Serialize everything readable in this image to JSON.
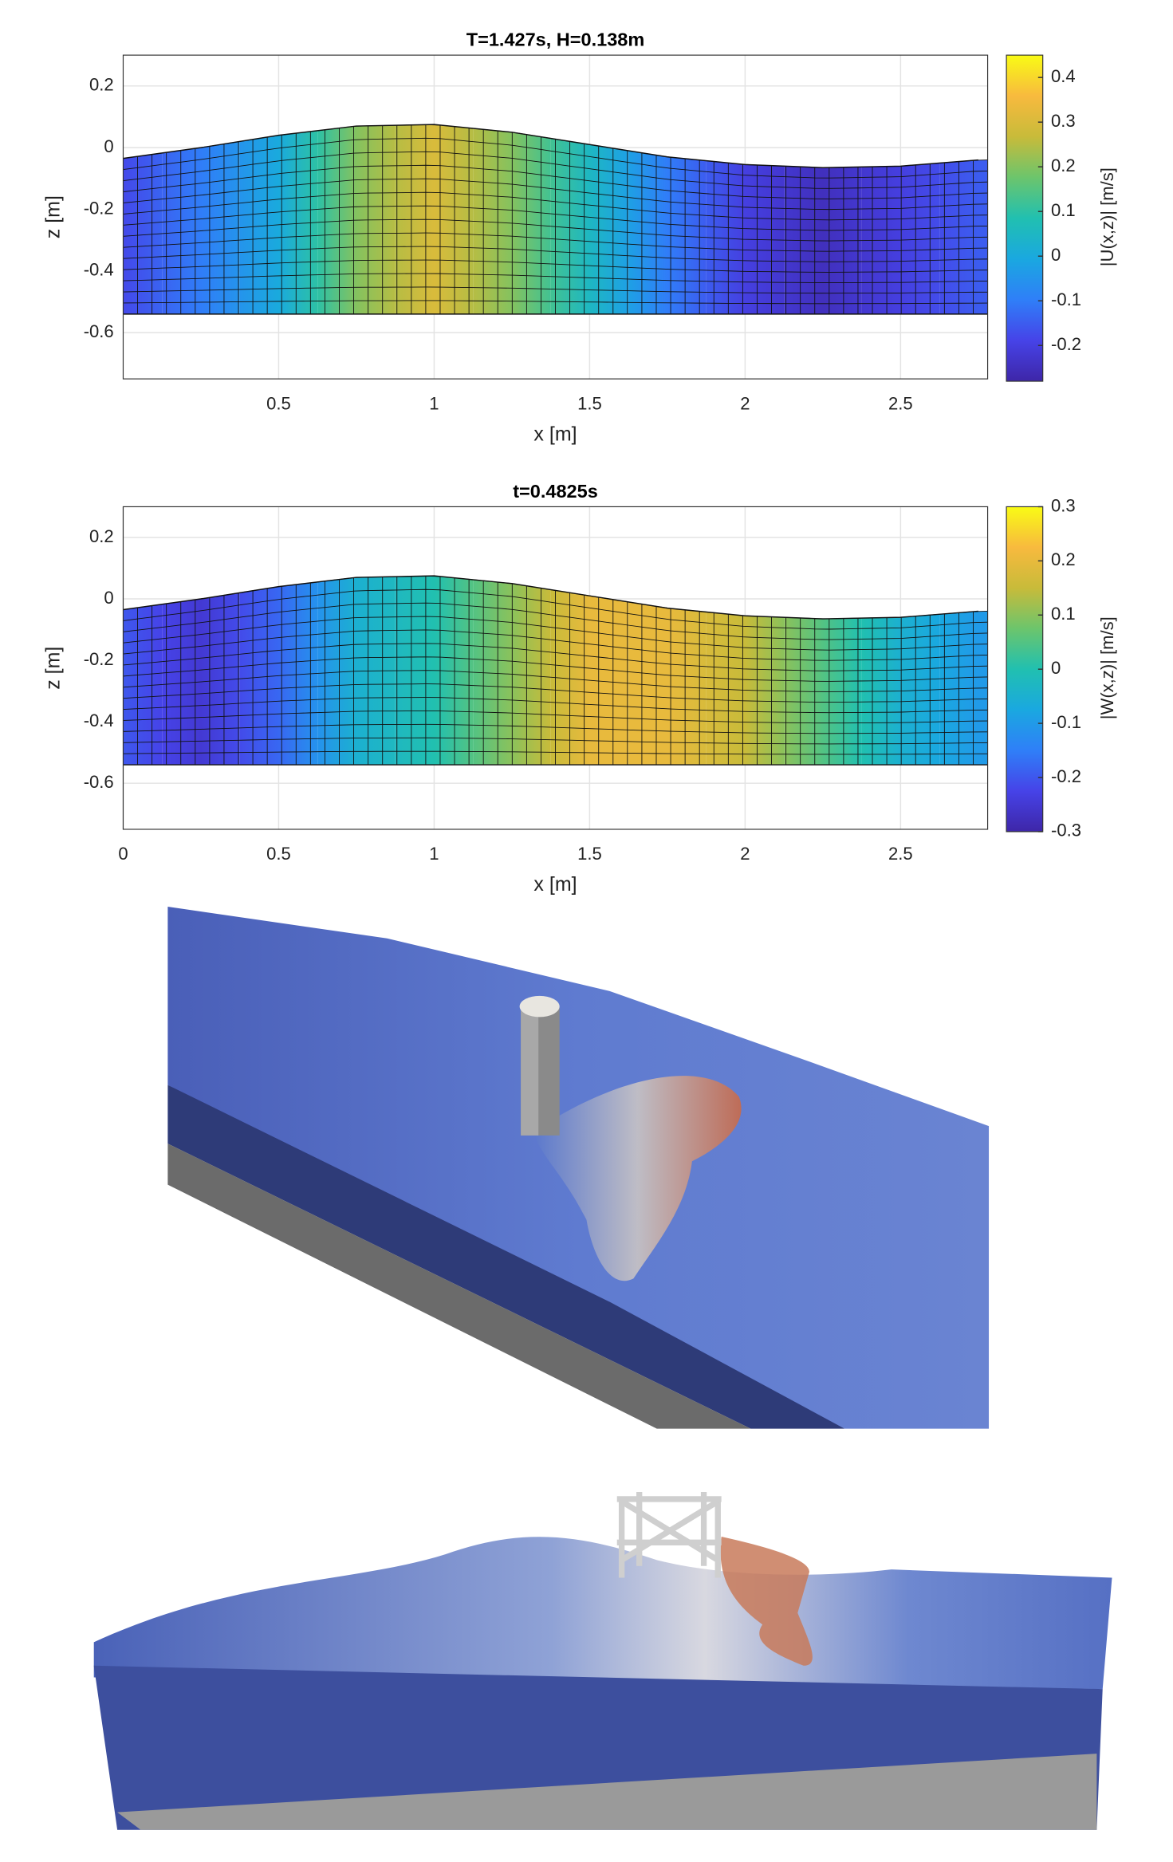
{
  "chart_data": [
    {
      "type": "mesh",
      "title": "T=1.427s, H=0.138m",
      "x_label": "x [m]",
      "y_label": "z [m]",
      "colorbar_label": "|U(x,z)| [m/s]",
      "colormap": "parula",
      "x": [
        0,
        0.25,
        0.5,
        0.75,
        1.0,
        1.25,
        1.5,
        1.75,
        2.0,
        2.25,
        2.5,
        2.75
      ],
      "surface": [
        -0.035,
        0.0,
        0.04,
        0.07,
        0.075,
        0.05,
        0.01,
        -0.03,
        -0.055,
        -0.065,
        -0.06,
        -0.04
      ],
      "bottom": -0.54,
      "values": [
        -0.18,
        -0.1,
        0.0,
        0.2,
        0.3,
        0.2,
        0.05,
        -0.1,
        -0.2,
        -0.25,
        -0.2,
        -0.15
      ],
      "xlim": [
        0,
        2.78
      ],
      "xticks": [
        0.5,
        1,
        1.5,
        2,
        2.5
      ],
      "ylim": [
        -0.75,
        0.3
      ],
      "yticks": [
        0.2,
        0,
        -0.2,
        -0.4,
        -0.6
      ],
      "clim": [
        -0.28,
        0.45
      ],
      "cticks": [
        0.4,
        0.3,
        0.2,
        0.1,
        0,
        -0.1,
        -0.2
      ],
      "grid": true
    },
    {
      "type": "mesh",
      "title": "t=0.4825s",
      "x_label": "x [m]",
      "y_label": "z [m]",
      "colorbar_label": "|W(x,z)| [m/s]",
      "colormap": "parula",
      "x": [
        0,
        0.25,
        0.5,
        0.75,
        1.0,
        1.25,
        1.5,
        1.75,
        2.0,
        2.25,
        2.5,
        2.75
      ],
      "surface": [
        -0.035,
        0.0,
        0.04,
        0.07,
        0.075,
        0.05,
        0.01,
        -0.03,
        -0.055,
        -0.065,
        -0.06,
        -0.04
      ],
      "bottom": -0.54,
      "values": [
        -0.2,
        -0.25,
        -0.18,
        -0.05,
        0.0,
        0.1,
        0.2,
        0.2,
        0.15,
        0.05,
        -0.05,
        -0.1
      ],
      "xlim": [
        0,
        2.78
      ],
      "xticks": [
        0,
        0.5,
        1,
        1.5,
        2,
        2.5
      ],
      "ylim": [
        -0.75,
        0.3
      ],
      "yticks": [
        0.2,
        0,
        -0.2,
        -0.4,
        -0.6
      ],
      "clim": [
        -0.3,
        0.3
      ],
      "cticks": [
        0.3,
        0.2,
        0.1,
        0,
        -0.1,
        -0.2,
        -0.3
      ],
      "grid": true
    }
  ]
}
